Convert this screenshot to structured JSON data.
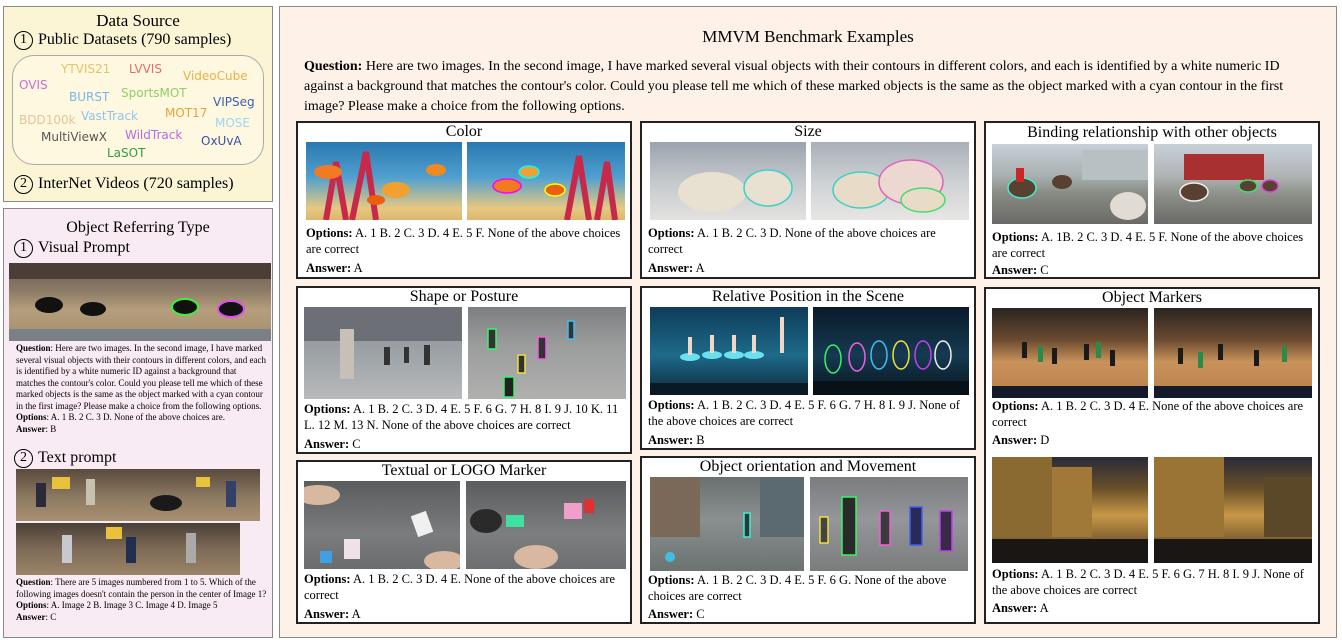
{
  "data_source": {
    "title": "Data Source",
    "public_num": "1",
    "public_label": "Public Datasets (790 samples)",
    "datasets": [
      {
        "name": "YTVIS21",
        "color": "#e8c26a"
      },
      {
        "name": "LVVIS",
        "color": "#e56d6d"
      },
      {
        "name": "OVIS",
        "color": "#d46bd4"
      },
      {
        "name": "VideoCube",
        "color": "#e8b14c"
      },
      {
        "name": "BURST",
        "color": "#79b8e6"
      },
      {
        "name": "SportsMOT",
        "color": "#8fcf66"
      },
      {
        "name": "VIPSeg",
        "color": "#3b5fb4"
      },
      {
        "name": "MOT17",
        "color": "#e8a33c"
      },
      {
        "name": "BDD100k",
        "color": "#e6c39a"
      },
      {
        "name": "VastTrack",
        "color": "#8fc4e8"
      },
      {
        "name": "MOSE",
        "color": "#9fd4f0"
      },
      {
        "name": "MultiViewX",
        "color": "#555555"
      },
      {
        "name": "WildTrack",
        "color": "#b46ce0"
      },
      {
        "name": "OxUvA",
        "color": "#3b4fa8"
      },
      {
        "name": "LaSOT",
        "color": "#2f9e44"
      }
    ],
    "internet_num": "2",
    "internet_label": "InterNet Videos (720 samples)"
  },
  "referring": {
    "title": "Object Referring Type",
    "visual_num": "1",
    "visual_label": "Visual Prompt",
    "visual_question_bold": "Question",
    "visual_question": ": Here are two images. In the second image, I have marked several visual objects with their contours in different colors, and each is identified by a white numeric ID against a background that matches the contour's color. Could you please tell me which of these marked objects is the same as the object marked with a cyan contour in the first image? Please make a choice from the following options.",
    "visual_options_bold": "Options",
    "visual_options": ": A. 1 B. 2 C. 3 D. None of the above choices are.",
    "visual_answer_bold": "Answer",
    "visual_answer": ": B",
    "text_num": "2",
    "text_label": "Text prompt",
    "text_question_bold": "Question",
    "text_question": ": There are 5 images numbered from 1 to 5. Which of the following images doesn't contain the person in the center of Image 1?",
    "text_options_bold": "Options",
    "text_options": ": A. Image 2 B. Image 3 C. Image 4 D. Image 5",
    "text_answer_bold": "Answer",
    "text_answer": ": C"
  },
  "main": {
    "title": "MMVM Benchmark Examples",
    "question_bold": "Question:",
    "question": " Here are two images. In the second image, I have marked several visual objects with their contours in different colors, and each is identified by a white numeric ID against a background that matches the contour's color. Could you please tell me which of these marked objects is the same as the object marked with a cyan contour in the first image? Please make a choice from the following options.",
    "options_label": "Options:",
    "answer_label": "Answer:",
    "panels": {
      "color": {
        "title": "Color",
        "options": " A. 1 B. 2 C. 3 D. 4 E. 5 F. None of the above choices are correct",
        "answer": " A"
      },
      "size": {
        "title": "Size",
        "options": " A. 1 B. 2 C. 3 D. None of the above choices are correct",
        "answer": " A"
      },
      "binding": {
        "title": "Binding relationship with other objects",
        "options": " A. 1B. 2 C. 3 D. 4 E. 5 F. None of the above choices are correct",
        "answer": " C"
      },
      "shape": {
        "title": "Shape or Posture",
        "options": " A. 1 B. 2 C. 3 D. 4 E. 5 F. 6 G. 7 H. 8 I. 9 J. 10 K. 11 L. 12 M. 13 N. None of the above choices are correct",
        "answer": " C"
      },
      "relpos": {
        "title": "Relative Position in the Scene",
        "options": " A. 1 B. 2 C. 3 D. 4 E. 5 F. 6 G. 7 H. 8 I. 9 J. None of the above choices are correct",
        "answer": " B"
      },
      "textual": {
        "title": "Textual or LOGO Marker",
        "options": " A. 1 B. 2 C. 3 D. 4 E. None of the above choices are correct",
        "answer": " A"
      },
      "orient": {
        "title": "Object orientation and Movement",
        "options": " A. 1 B. 2 C. 3 D. 4 E. 5 F. 6 G. None of the above choices are correct",
        "answer": " C"
      },
      "markers": {
        "title": "Object Markers",
        "options1": " A. 1 B. 2 C. 3 D. 4 E. None of the above choices are correct",
        "answer1": " D",
        "options2": " A. 1 B. 2 C. 3 D. 4 E. 5 F. 6 G. 7 H. 8 I. 9 J. None of the above choices are correct",
        "answer2": " A"
      }
    }
  }
}
